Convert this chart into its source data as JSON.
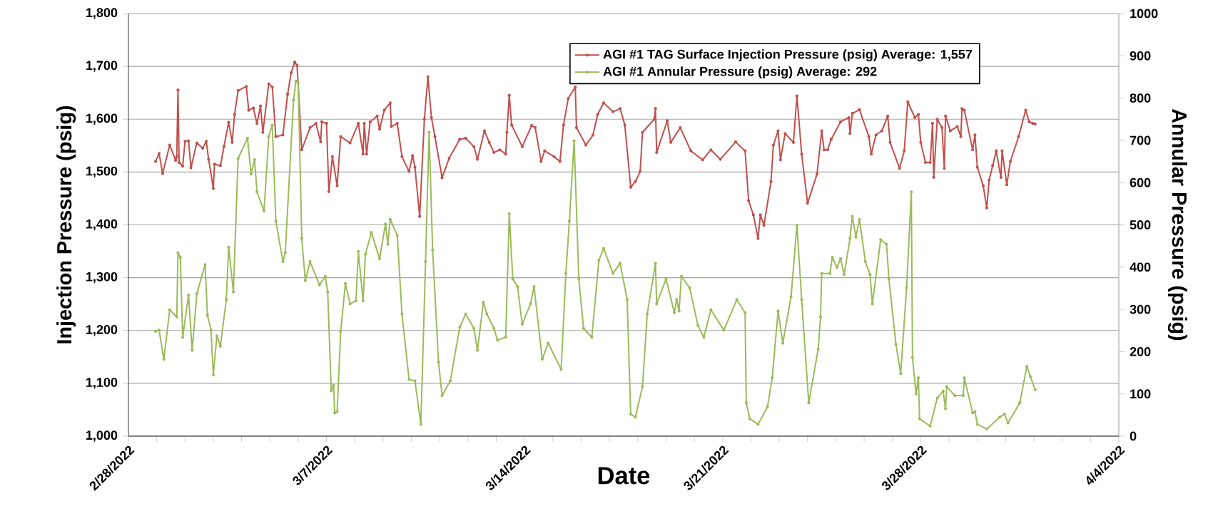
{
  "chart_data": {
    "type": "line",
    "xlabel": "Date",
    "ylabel": "Injection Pressure (psig)",
    "y2label": "Annular Pressure (psig)",
    "xlim": [
      "2022-02-28",
      "2022-04-04"
    ],
    "xticks": [
      {
        "value": "2022-02-28",
        "label": "2/28/2022"
      },
      {
        "value": "2022-03-01",
        "label": null
      },
      {
        "value": "2022-03-02",
        "label": null
      },
      {
        "value": "2022-03-03",
        "label": null
      },
      {
        "value": "2022-03-04",
        "label": null
      },
      {
        "value": "2022-03-05",
        "label": null
      },
      {
        "value": "2022-03-06",
        "label": null
      },
      {
        "value": "2022-03-07",
        "label": "3/7/2022"
      },
      {
        "value": "2022-03-08",
        "label": null
      },
      {
        "value": "2022-03-09",
        "label": null
      },
      {
        "value": "2022-03-10",
        "label": null
      },
      {
        "value": "2022-03-11",
        "label": null
      },
      {
        "value": "2022-03-12",
        "label": null
      },
      {
        "value": "2022-03-13",
        "label": null
      },
      {
        "value": "2022-03-14",
        "label": "3/14/2022"
      },
      {
        "value": "2022-03-15",
        "label": null
      },
      {
        "value": "2022-03-16",
        "label": null
      },
      {
        "value": "2022-03-17",
        "label": null
      },
      {
        "value": "2022-03-18",
        "label": null
      },
      {
        "value": "2022-03-19",
        "label": null
      },
      {
        "value": "2022-03-20",
        "label": null
      },
      {
        "value": "2022-03-21",
        "label": "3/21/2022"
      },
      {
        "value": "2022-03-22",
        "label": null
      },
      {
        "value": "2022-03-23",
        "label": null
      },
      {
        "value": "2022-03-24",
        "label": null
      },
      {
        "value": "2022-03-25",
        "label": null
      },
      {
        "value": "2022-03-26",
        "label": null
      },
      {
        "value": "2022-03-27",
        "label": null
      },
      {
        "value": "2022-03-28",
        "label": "3/28/2022"
      },
      {
        "value": "2022-03-29",
        "label": null
      },
      {
        "value": "2022-03-30",
        "label": null
      },
      {
        "value": "2022-03-31",
        "label": null
      },
      {
        "value": "2022-04-01",
        "label": null
      },
      {
        "value": "2022-04-02",
        "label": null
      },
      {
        "value": "2022-04-03",
        "label": null
      },
      {
        "value": "2022-04-04",
        "label": "4/4/2022"
      }
    ],
    "ylim": [
      1000,
      1800
    ],
    "yticks": [
      {
        "value": 1000,
        "label": "1,000"
      },
      {
        "value": 1100,
        "label": "1,100"
      },
      {
        "value": 1200,
        "label": "1,200"
      },
      {
        "value": 1300,
        "label": "1,300"
      },
      {
        "value": 1400,
        "label": "1,400"
      },
      {
        "value": 1500,
        "label": "1,500"
      },
      {
        "value": 1600,
        "label": "1,600"
      },
      {
        "value": 1700,
        "label": "1,700"
      },
      {
        "value": 1800,
        "label": "1,800"
      }
    ],
    "y2lim": [
      0,
      1000
    ],
    "y2ticks": [
      0,
      100,
      200,
      300,
      400,
      500,
      600,
      700,
      800,
      900,
      1000
    ],
    "grid": "y",
    "legend": "top right",
    "marker": "circle",
    "line_style": "solid",
    "series": [
      {
        "name": "AGI #1 TAG Surface  Injection Pressure (psig) Average: 1,557",
        "color": "#c0504d",
        "x": [
          "2022-02-28T23:00",
          "2022-03-01T02:00",
          "2022-03-01T05:00",
          "2022-03-01T11:00",
          "2022-03-01T16:00",
          "2022-03-01T17:00",
          "2022-03-01T18:00",
          "2022-03-01T19:00",
          "2022-03-01T22:00",
          "2022-03-02T00:00",
          "2022-03-02T03:00",
          "2022-03-02T05:00",
          "2022-03-02T10:00",
          "2022-03-02T15:00",
          "2022-03-02T18:00",
          "2022-03-02T20:00",
          "2022-03-03T00:00",
          "2022-03-03T01:00",
          "2022-03-03T06:00",
          "2022-03-03T09:00",
          "2022-03-03T13:00",
          "2022-03-03T16:00",
          "2022-03-03T18:00",
          "2022-03-03T21:00",
          "2022-03-04T04:00",
          "2022-03-04T06:00",
          "2022-03-04T10:00",
          "2022-03-04T13:00",
          "2022-03-04T16:00",
          "2022-03-04T18:00",
          "2022-03-04T23:00",
          "2022-03-05T02:00",
          "2022-03-05T05:00",
          "2022-03-05T11:00",
          "2022-03-05T15:00",
          "2022-03-05T18:00",
          "2022-03-05T21:00",
          "2022-03-05T23:00",
          "2022-03-06T03:00",
          "2022-03-06T10:00",
          "2022-03-06T15:00",
          "2022-03-06T19:00",
          "2022-03-06T20:00",
          "2022-03-07T00:00",
          "2022-03-07T02:00",
          "2022-03-07T05:00",
          "2022-03-07T09:00",
          "2022-03-07T12:00",
          "2022-03-07T20:00",
          "2022-03-08T03:00",
          "2022-03-08T07:00",
          "2022-03-08T08:00",
          "2022-03-08T10:00",
          "2022-03-08T13:00",
          "2022-03-08T19:00",
          "2022-03-08T21:00",
          "2022-03-09T01:00",
          "2022-03-09T06:00",
          "2022-03-09T07:00",
          "2022-03-09T12:00",
          "2022-03-09T16:00",
          "2022-03-09T22:00",
          "2022-03-10T01:00",
          "2022-03-10T03:00",
          "2022-03-10T07:00",
          "2022-03-10T11:00",
          "2022-03-10T14:00",
          "2022-03-10T17:00",
          "2022-03-10T20:00",
          "2022-03-11T02:00",
          "2022-03-11T08:00",
          "2022-03-11T17:00",
          "2022-03-11T22:00",
          "2022-03-12T05:00",
          "2022-03-12T08:00",
          "2022-03-12T14:00",
          "2022-03-12T18:00",
          "2022-03-12T22:00",
          "2022-03-13T03:00",
          "2022-03-13T08:00",
          "2022-03-13T09:00",
          "2022-03-13T11:00",
          "2022-03-13T13:00",
          "2022-03-13T22:00",
          "2022-03-14T06:00",
          "2022-03-14T09:00",
          "2022-03-14T14:00",
          "2022-03-14T17:00",
          "2022-03-15T01:00",
          "2022-03-15T06:00",
          "2022-03-15T09:00",
          "2022-03-15T13:00",
          "2022-03-15T19:00",
          "2022-03-15T20:00",
          "2022-03-16T04:00",
          "2022-03-16T10:00",
          "2022-03-16T14:00",
          "2022-03-16T19:00",
          "2022-03-17T03:00",
          "2022-03-17T09:00",
          "2022-03-17T13:00",
          "2022-03-17T18:00",
          "2022-03-17T22:00",
          "2022-03-18T02:00",
          "2022-03-18T04:00",
          "2022-03-18T14:00",
          "2022-03-18T15:00",
          "2022-03-18T16:00",
          "2022-03-19T01:00",
          "2022-03-19T04:00",
          "2022-03-19T12:00",
          "2022-03-19T21:00",
          "2022-03-20T07:00",
          "2022-03-20T14:00",
          "2022-03-20T22:00",
          "2022-03-21T11:00",
          "2022-03-21T19:00",
          "2022-03-21T22:00",
          "2022-03-22T02:00",
          "2022-03-22T06:00",
          "2022-03-22T08:00",
          "2022-03-22T11:00",
          "2022-03-22T17:00",
          "2022-03-22T19:00",
          "2022-03-22T23:00",
          "2022-03-23T01:00",
          "2022-03-23T05:00",
          "2022-03-23T12:00",
          "2022-03-23T15:00",
          "2022-03-23T19:00",
          "2022-03-24T00:00",
          "2022-03-24T08:00",
          "2022-03-24T12:00",
          "2022-03-24T14:00",
          "2022-03-24T17:00",
          "2022-03-24T20:00",
          "2022-03-25T04:00",
          "2022-03-25T11:00",
          "2022-03-25T12:00",
          "2022-03-25T14:00",
          "2022-03-25T20:00",
          "2022-03-26T04:00",
          "2022-03-26T06:00",
          "2022-03-26T10:00",
          "2022-03-26T15:00",
          "2022-03-26T20:00",
          "2022-03-26T22:00",
          "2022-03-27T06:00",
          "2022-03-27T10:00",
          "2022-03-27T13:00",
          "2022-03-27T19:00",
          "2022-03-27T22:00",
          "2022-03-28T00:00",
          "2022-03-28T04:00",
          "2022-03-28T08:00",
          "2022-03-28T10:00",
          "2022-03-28T11:00",
          "2022-03-28T14:00",
          "2022-03-28T18:00",
          "2022-03-28T20:00",
          "2022-03-28T21:00",
          "2022-03-29T01:00",
          "2022-03-29T07:00",
          "2022-03-29T10:00",
          "2022-03-29T11:00",
          "2022-03-29T13:00",
          "2022-03-29T20:00",
          "2022-03-29T22:00",
          "2022-03-30T00:00",
          "2022-03-30T05:00",
          "2022-03-30T08:00",
          "2022-03-30T10:00",
          "2022-03-30T13:00",
          "2022-03-30T16:00",
          "2022-03-30T20:00",
          "2022-03-30T21:00",
          "2022-03-31T01:00",
          "2022-03-31T04:00",
          "2022-03-31T11:00",
          "2022-03-31T17:00",
          "2022-03-31T20:00",
          "2022-03-31T23:00",
          "2022-04-01T01:00"
        ],
        "values": [
          1520,
          1535,
          1497,
          1551,
          1522,
          1529,
          1655,
          1518,
          1511,
          1558,
          1559,
          1508,
          1555,
          1545,
          1558,
          1524,
          1469,
          1515,
          1512,
          1548,
          1594,
          1556,
          1609,
          1654,
          1662,
          1617,
          1621,
          1592,
          1625,
          1575,
          1667,
          1661,
          1567,
          1570,
          1647,
          1688,
          1708,
          1702,
          1542,
          1584,
          1592,
          1557,
          1595,
          1592,
          1463,
          1529,
          1474,
          1567,
          1555,
          1592,
          1534,
          1592,
          1534,
          1595,
          1606,
          1581,
          1617,
          1631,
          1586,
          1592,
          1529,
          1501,
          1531,
          1509,
          1416,
          1600,
          1680,
          1603,
          1567,
          1489,
          1526,
          1562,
          1564,
          1548,
          1524,
          1578,
          1556,
          1537,
          1542,
          1534,
          1575,
          1645,
          1589,
          1548,
          1588,
          1584,
          1520,
          1540,
          1529,
          1520,
          1589,
          1639,
          1661,
          1584,
          1551,
          1570,
          1609,
          1631,
          1614,
          1620,
          1589,
          1471,
          1482,
          1501,
          1575,
          1600,
          1620,
          1537,
          1597,
          1556,
          1584,
          1540,
          1523,
          1542,
          1524,
          1557,
          1540,
          1446,
          1419,
          1374,
          1419,
          1399,
          1482,
          1551,
          1578,
          1523,
          1573,
          1556,
          1644,
          1534,
          1441,
          1496,
          1578,
          1542,
          1542,
          1562,
          1595,
          1603,
          1573,
          1611,
          1618,
          1567,
          1534,
          1570,
          1578,
          1606,
          1556,
          1507,
          1540,
          1633,
          1603,
          1609,
          1556,
          1518,
          1518,
          1592,
          1490,
          1600,
          1584,
          1507,
          1606,
          1578,
          1586,
          1567,
          1620,
          1617,
          1542,
          1570,
          1509,
          1474,
          1432,
          1485,
          1512,
          1540,
          1490,
          1540,
          1476,
          1520,
          1567,
          1617,
          1595,
          1592,
          1591
        ]
      },
      {
        "name": "AGI #1 Annular Pressure (psig) Average: 292",
        "color": "#9bbb59",
        "axis": "y2",
        "x": [
          "2022-02-28T23:00",
          "2022-03-01T02:00",
          "2022-03-01T06:00",
          "2022-03-01T11:00",
          "2022-03-01T17:00",
          "2022-03-01T18:00",
          "2022-03-01T20:00",
          "2022-03-01T22:00",
          "2022-03-02T03:00",
          "2022-03-02T06:00",
          "2022-03-02T10:00",
          "2022-03-02T17:00",
          "2022-03-02T19:00",
          "2022-03-02T22:00",
          "2022-03-03T00:00",
          "2022-03-03T03:00",
          "2022-03-03T06:00",
          "2022-03-03T11:00",
          "2022-03-03T13:00",
          "2022-03-03T17:00",
          "2022-03-03T21:00",
          "2022-03-04T05:00",
          "2022-03-04T08:00",
          "2022-03-04T11:00",
          "2022-03-04T13:00",
          "2022-03-04T19:00",
          "2022-03-04T23:00",
          "2022-03-05T02:00",
          "2022-03-05T05:00",
          "2022-03-05T11:00",
          "2022-03-05T13:00",
          "2022-03-05T20:00",
          "2022-03-05T22:00",
          "2022-03-06T00:00",
          "2022-03-06T03:00",
          "2022-03-06T06:00",
          "2022-03-06T10:00",
          "2022-03-06T18:00",
          "2022-03-06T23:00",
          "2022-03-07T01:00",
          "2022-03-07T04:00",
          "2022-03-07T06:00",
          "2022-03-07T07:00",
          "2022-03-07T09:00",
          "2022-03-07T12:00",
          "2022-03-07T16:00",
          "2022-03-07T20:00",
          "2022-03-08T01:00",
          "2022-03-08T03:00",
          "2022-03-08T07:00",
          "2022-03-08T09:00",
          "2022-03-08T14:00",
          "2022-03-08T21:00",
          "2022-03-09T02:00",
          "2022-03-09T04:00",
          "2022-03-09T06:00",
          "2022-03-09T12:00",
          "2022-03-09T16:00",
          "2022-03-09T22:00",
          "2022-03-10T03:00",
          "2022-03-10T08:00",
          "2022-03-10T12:00",
          "2022-03-10T15:00",
          "2022-03-10T18:00",
          "2022-03-10T23:00",
          "2022-03-11T02:00",
          "2022-03-11T09:00",
          "2022-03-11T17:00",
          "2022-03-11T22:00",
          "2022-03-12T05:00",
          "2022-03-12T08:00",
          "2022-03-12T13:00",
          "2022-03-12T16:00",
          "2022-03-12T22:00",
          "2022-03-13T01:00",
          "2022-03-13T08:00",
          "2022-03-13T11:00",
          "2022-03-13T14:00",
          "2022-03-13T18:00",
          "2022-03-13T22:00",
          "2022-03-14T05:00",
          "2022-03-14T08:00",
          "2022-03-14T15:00",
          "2022-03-14T20:00",
          "2022-03-15T07:00",
          "2022-03-15T11:00",
          "2022-03-15T14:00",
          "2022-03-15T18:00",
          "2022-03-15T22:00",
          "2022-03-16T02:00",
          "2022-03-16T09:00",
          "2022-03-16T15:00",
          "2022-03-16T19:00",
          "2022-03-17T03:00",
          "2022-03-17T09:00",
          "2022-03-17T15:00",
          "2022-03-17T18:00",
          "2022-03-17T22:00",
          "2022-03-18T04:00",
          "2022-03-18T08:00",
          "2022-03-18T15:00",
          "2022-03-18T16:00",
          "2022-03-19T00:00",
          "2022-03-19T07:00",
          "2022-03-19T09:00",
          "2022-03-19T11:00",
          "2022-03-19T13:00",
          "2022-03-19T20:00",
          "2022-03-20T03:00",
          "2022-03-20T08:00",
          "2022-03-20T14:00",
          "2022-03-21T01:00",
          "2022-03-21T12:00",
          "2022-03-21T19:00",
          "2022-03-21T20:00",
          "2022-03-21T23:00",
          "2022-03-22T06:00",
          "2022-03-22T14:00",
          "2022-03-22T18:00",
          "2022-03-22T23:00",
          "2022-03-23T03:00",
          "2022-03-23T10:00",
          "2022-03-23T15:00",
          "2022-03-23T19:00",
          "2022-03-24T01:00",
          "2022-03-24T09:00",
          "2022-03-24T11:00",
          "2022-03-24T12:00",
          "2022-03-24T19:00",
          "2022-03-24T21:00",
          "2022-03-25T01:00",
          "2022-03-25T04:00",
          "2022-03-25T07:00",
          "2022-03-25T12:00",
          "2022-03-25T14:00",
          "2022-03-25T17:00",
          "2022-03-25T20:00",
          "2022-03-26T01:00",
          "2022-03-26T05:00",
          "2022-03-26T07:00",
          "2022-03-26T14:00",
          "2022-03-26T19:00",
          "2022-03-26T21:00",
          "2022-03-27T03:00",
          "2022-03-27T07:00",
          "2022-03-27T12:00",
          "2022-03-27T16:00",
          "2022-03-27T17:00",
          "2022-03-27T20:00",
          "2022-03-27T22:00",
          "2022-03-27T23:00",
          "2022-03-28T08:00",
          "2022-03-28T14:00",
          "2022-03-28T19:00",
          "2022-03-28T21:00",
          "2022-03-28T22:00",
          "2022-03-29T05:00",
          "2022-03-29T12:00",
          "2022-03-29T13:00",
          "2022-03-29T20:00",
          "2022-03-29T22:00",
          "2022-03-30T00:00",
          "2022-03-30T08:00",
          "2022-03-30T19:00",
          "2022-03-30T23:00",
          "2022-03-31T02:00",
          "2022-03-31T12:00",
          "2022-03-31T18:00",
          "2022-03-31T21:00",
          "2022-04-01T01:00"
        ],
        "values": [
          248,
          251,
          182,
          299,
          282,
          434,
          423,
          234,
          334,
          203,
          337,
          406,
          286,
          251,
          145,
          237,
          213,
          323,
          447,
          341,
          657,
          705,
          620,
          654,
          578,
          533,
          709,
          736,
          509,
          413,
          434,
          795,
          840,
          836,
          468,
          368,
          413,
          358,
          378,
          341,
          107,
          120,
          55,
          58,
          248,
          361,
          313,
          320,
          437,
          320,
          430,
          482,
          420,
          502,
          454,
          513,
          475,
          289,
          134,
          131,
          28,
          413,
          719,
          440,
          175,
          96,
          131,
          258,
          289,
          255,
          203,
          317,
          289,
          255,
          227,
          234,
          526,
          372,
          354,
          265,
          313,
          354,
          182,
          220,
          158,
          385,
          509,
          699,
          372,
          255,
          234,
          416,
          444,
          385,
          409,
          323,
          52,
          45,
          117,
          289,
          409,
          313,
          372,
          292,
          323,
          296,
          378,
          351,
          262,
          234,
          299,
          251,
          323,
          292,
          79,
          41,
          28,
          69,
          138,
          296,
          220,
          330,
          499,
          323,
          79,
          206,
          282,
          385,
          385,
          423,
          399,
          420,
          382,
          468,
          520,
          471,
          513,
          413,
          382,
          313,
          465,
          454,
          372,
          217,
          148,
          351,
          578,
          186,
          100,
          138,
          41,
          24,
          90,
          107,
          65,
          117,
          96,
          96,
          138,
          55,
          58,
          28,
          17,
          45,
          52,
          31,
          79,
          165,
          141,
          110
        ]
      }
    ]
  }
}
